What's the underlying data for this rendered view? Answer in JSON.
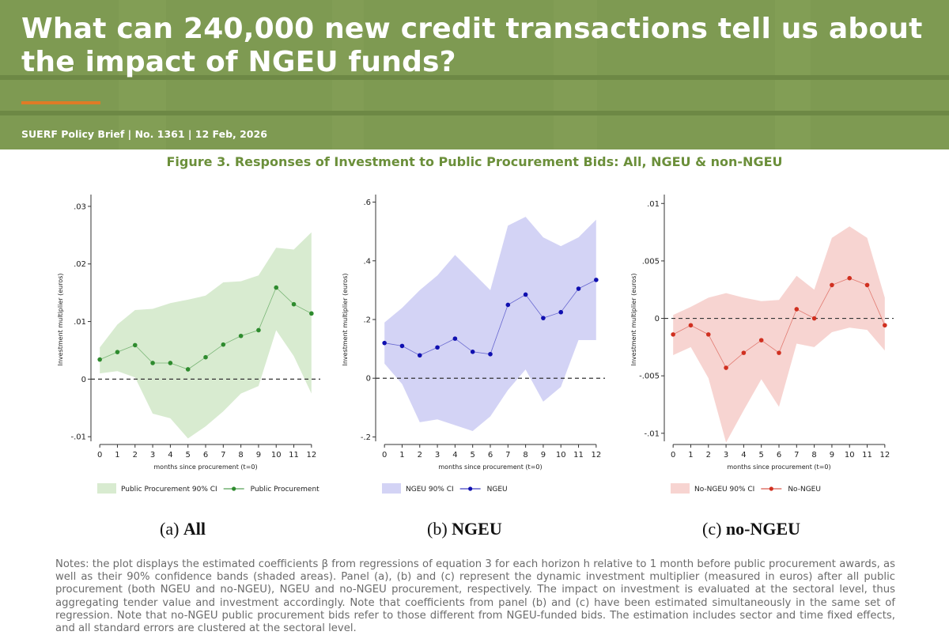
{
  "banner": {
    "title": "What can 240,000 new credit transactions tell us about the impact of NGEU funds?",
    "meta": "SUERF Policy Brief | No. 1361 | 12 Feb, 2026",
    "bg_color": "#7e9a52",
    "accent_color": "#e07b26"
  },
  "figure": {
    "title": "Figure 3. Responses of Investment to Public Procurement Bids: All, NGEU & non-NGEU",
    "title_color": "#6b8f3a"
  },
  "panels": [
    {
      "caption_prefix": "(a) ",
      "caption_bold": "All"
    },
    {
      "caption_prefix": "(b) ",
      "caption_bold": "NGEU"
    },
    {
      "caption_prefix": "(c) ",
      "caption_bold": "no-NGEU"
    }
  ],
  "notes": "Notes: the plot displays the estimated coefficients β from regressions of equation 3 for each horizon h relative to 1 month before public procurement awards, as well as their 90% confidence bands (shaded areas). Panel (a), (b) and (c) represent the dynamic investment multiplier (measured in euros) after all public procurement (both NGEU and no-NGEU), NGEU and no-NGEU procurement, respectively. The impact on investment is evaluated at the sectoral level, thus aggregating tender value and investment accordingly. Note that coefficients from panel (b) and (c) have been estimated simultaneously in the same set of regression. Note that no-NGEU public procurement bids refer to those different from NGEU-funded bids. The estimation includes sector and time fixed effects, and all standard errors are clustered at the sectoral level.",
  "chart_data": [
    {
      "type": "line",
      "xlabel": "months since procurement (t=0)",
      "ylabel": "Investment multiplier (euros)",
      "x": [
        0,
        1,
        2,
        3,
        4,
        5,
        6,
        7,
        8,
        9,
        10,
        11,
        12
      ],
      "xticks": [
        "0",
        "1",
        "2",
        "3",
        "4",
        "5",
        "6",
        "7",
        "8",
        "9",
        "10",
        "11",
        "12"
      ],
      "ylim": [
        -0.0108,
        0.0315
      ],
      "yticks": [
        -0.01,
        0,
        0.01,
        0.02,
        0.03
      ],
      "ytick_labels": [
        "-.01",
        "0",
        ".01",
        ".02",
        ".03"
      ],
      "zero_line": true,
      "grid": false,
      "legend_position": "bottom",
      "series": [
        {
          "name": "Public Procurement",
          "values": [
            0.0034,
            0.0047,
            0.0059,
            0.0028,
            0.0028,
            0.0017,
            0.0038,
            0.006,
            0.0075,
            0.0085,
            0.0159,
            0.013,
            0.0114
          ],
          "color": "#2e8b2e"
        }
      ],
      "bands": [
        {
          "name": "Public Procurement 90% CI",
          "lower": [
            0.001,
            0.0014,
            0.0003,
            -0.006,
            -0.0068,
            -0.0103,
            -0.0082,
            -0.0056,
            -0.0025,
            -0.0012,
            0.0085,
            0.004,
            -0.0025
          ],
          "upper": [
            0.0055,
            0.0095,
            0.012,
            0.0122,
            0.0132,
            0.0138,
            0.0145,
            0.0168,
            0.017,
            0.018,
            0.0228,
            0.0225,
            0.0255
          ],
          "color": "#d8ebd0"
        }
      ]
    },
    {
      "type": "line",
      "xlabel": "months since procurement (t=0)",
      "ylabel": "Investment multiplier (euros)",
      "x": [
        0,
        1,
        2,
        3,
        4,
        5,
        6,
        7,
        8,
        9,
        10,
        11,
        12
      ],
      "xticks": [
        "0",
        "1",
        "2",
        "3",
        "4",
        "5",
        "6",
        "7",
        "8",
        "9",
        "10",
        "11",
        "12"
      ],
      "ylim": [
        -0.215,
        0.615
      ],
      "yticks": [
        -0.2,
        0,
        0.2,
        0.4,
        0.6
      ],
      "ytick_labels": [
        "-.2",
        "0",
        ".2",
        ".4",
        ".6"
      ],
      "zero_line": true,
      "grid": false,
      "legend_position": "bottom",
      "series": [
        {
          "name": "NGEU",
          "values": [
            0.12,
            0.11,
            0.078,
            0.105,
            0.135,
            0.09,
            0.082,
            0.25,
            0.285,
            0.205,
            0.225,
            0.305,
            0.335
          ],
          "color": "#1010b0"
        }
      ],
      "bands": [
        {
          "name": "NGEU 90% CI",
          "lower": [
            0.05,
            -0.02,
            -0.15,
            -0.14,
            -0.16,
            -0.18,
            -0.13,
            -0.04,
            0.03,
            -0.08,
            -0.03,
            0.13,
            0.13
          ],
          "upper": [
            0.19,
            0.24,
            0.3,
            0.35,
            0.42,
            0.36,
            0.3,
            0.52,
            0.55,
            0.48,
            0.45,
            0.48,
            0.54
          ],
          "color": "#d3d3f5"
        }
      ]
    },
    {
      "type": "line",
      "xlabel": "months since procurement (t=0)",
      "ylabel": "Investment multiplier (euros)",
      "x": [
        0,
        1,
        2,
        3,
        4,
        5,
        6,
        7,
        8,
        9,
        10,
        11,
        12
      ],
      "xticks": [
        "0",
        "1",
        "2",
        "3",
        "4",
        "5",
        "6",
        "7",
        "8",
        "9",
        "10",
        "11",
        "12"
      ],
      "ylim": [
        -0.0107,
        0.0105
      ],
      "yticks": [
        -0.01,
        -0.005,
        0,
        0.005,
        0.01
      ],
      "ytick_labels": [
        "-.01",
        "-.005",
        "0",
        ".005",
        ".01"
      ],
      "zero_line": true,
      "grid": false,
      "legend_position": "bottom",
      "series": [
        {
          "name": "No-NGEU",
          "values": [
            -0.0014,
            -0.0006,
            -0.0014,
            -0.0043,
            -0.003,
            -0.0019,
            -0.003,
            0.0008,
            0.0,
            0.0029,
            0.0035,
            0.0029,
            -0.0006
          ],
          "color": "#d03020"
        }
      ],
      "bands": [
        {
          "name": "No-NGEU 90% CI",
          "lower": [
            -0.0032,
            -0.0025,
            -0.0052,
            -0.0108,
            -0.008,
            -0.0053,
            -0.0077,
            -0.0022,
            -0.0025,
            -0.0012,
            -0.0008,
            -0.001,
            -0.0028
          ],
          "upper": [
            0.0003,
            0.001,
            0.0018,
            0.0022,
            0.0018,
            0.0015,
            0.0016,
            0.0037,
            0.0025,
            0.007,
            0.008,
            0.007,
            0.0018
          ],
          "color": "#f7d4d1"
        }
      ]
    }
  ]
}
